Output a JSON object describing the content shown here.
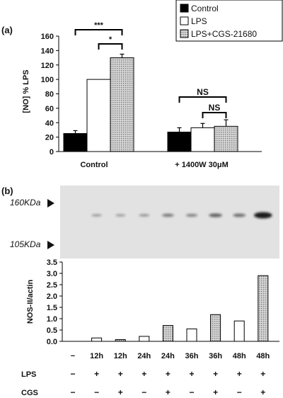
{
  "panel_labels": [
    "(a)",
    "(b)"
  ],
  "colors": {
    "control": "#000000",
    "lps": "#ffffff",
    "cgs": "#b8b8b8",
    "axis": "#000000",
    "blot_bg": "#e2e2e2",
    "band": "#1a1a1a"
  },
  "blot": {
    "markers": [
      "160KDa",
      "105KDa"
    ]
  },
  "lanes": [
    {
      "time": "−",
      "lps": "−",
      "cgs": "−"
    },
    {
      "time": "12h",
      "lps": "+",
      "cgs": "−"
    },
    {
      "time": "12h",
      "lps": "+",
      "cgs": "+"
    },
    {
      "time": "24h",
      "lps": "+",
      "cgs": "−"
    },
    {
      "time": "24h",
      "lps": "+",
      "cgs": "+"
    },
    {
      "time": "36h",
      "lps": "+",
      "cgs": "−"
    },
    {
      "time": "36h",
      "lps": "+",
      "cgs": "+"
    },
    {
      "time": "48h",
      "lps": "+",
      "cgs": "−"
    },
    {
      "time": "48h",
      "lps": "+",
      "cgs": "+"
    }
  ],
  "row_labels": {
    "lps": "LPS",
    "cgs": "CGS"
  },
  "chart_data": [
    {
      "type": "bar",
      "title": "",
      "categories": [
        "Control",
        "+ 1400W 30μM"
      ],
      "ylabel": "[NO] % LPS",
      "xlabel": "",
      "ylim": [
        0,
        160
      ],
      "yticks": [
        0,
        20,
        40,
        60,
        80,
        100,
        120,
        140,
        160
      ],
      "legend_position": "top-right",
      "series": [
        {
          "name": "Control",
          "values": [
            25,
            27
          ],
          "errors": [
            4,
            6
          ]
        },
        {
          "name": "LPS",
          "values": [
            100,
            33
          ],
          "errors": [
            0,
            6
          ]
        },
        {
          "name": "LPS+CGS-21680",
          "values": [
            130,
            35
          ],
          "errors": [
            5,
            9
          ]
        }
      ],
      "annotations": [
        {
          "text": "***",
          "from": "Control/Control",
          "to": "Control/LPS+CGS-21680"
        },
        {
          "text": "*",
          "from": "Control/LPS",
          "to": "Control/LPS+CGS-21680"
        },
        {
          "text": "NS",
          "from": "+ 1400W 30μM/Control",
          "to": "+ 1400W 30μM/LPS+CGS-21680"
        },
        {
          "text": "NS",
          "from": "+ 1400W 30μM/LPS",
          "to": "+ 1400W 30μM/LPS+CGS-21680"
        }
      ]
    },
    {
      "type": "bar",
      "title": "",
      "ylabel": "NOS-II/actin",
      "xlabel": "",
      "ylim": [
        0,
        3.5
      ],
      "yticks": [
        "0.0",
        "0.5",
        "1.0",
        "1.5",
        "2.0",
        "2.5",
        "3.0",
        "3.5"
      ],
      "x": [
        "−",
        "12h",
        "12h",
        "24h",
        "24h",
        "36h",
        "36h",
        "48h",
        "48h"
      ],
      "values": [
        0.0,
        0.15,
        0.08,
        0.22,
        0.7,
        0.55,
        1.18,
        0.9,
        2.9
      ],
      "cgs": [
        false,
        false,
        true,
        false,
        true,
        false,
        true,
        false,
        true
      ]
    }
  ]
}
